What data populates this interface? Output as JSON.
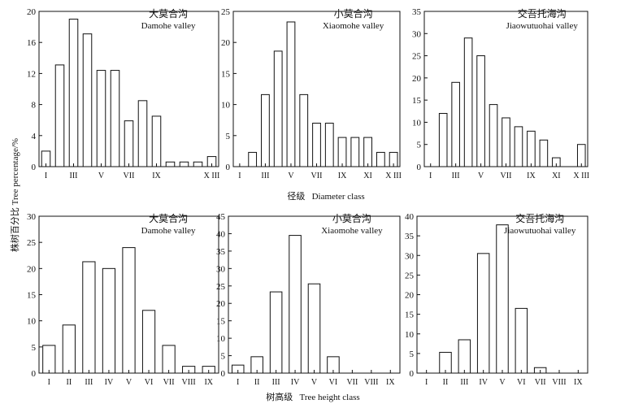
{
  "figure": {
    "y_axis_label": "株树百分比 Tree percentage/%",
    "top_x_label": "径级   Diameter class",
    "bottom_x_label": "树高级   Tree height class"
  },
  "chart_data": [
    {
      "type": "bar",
      "title_cn": "大莫合沟",
      "title_en": "Damohe valley",
      "xlabel": "Diameter class",
      "ylabel": "Tree percentage/%",
      "ylim": [
        0,
        20
      ],
      "yticks": [
        0,
        4,
        8,
        12,
        16,
        20
      ],
      "categories": [
        "I",
        "II",
        "III",
        "IV",
        "V",
        "VI",
        "VII",
        "VIII",
        "IX",
        "X",
        "XI",
        "XII",
        "XIII"
      ],
      "tick_labels": [
        "I",
        "III",
        "V",
        "VII",
        "IX",
        "X III"
      ],
      "tick_positions": [
        0,
        2,
        4,
        6,
        8,
        12
      ],
      "values": [
        2.0,
        13.1,
        19.0,
        17.1,
        12.4,
        12.4,
        5.9,
        8.5,
        6.5,
        0.6,
        0.6,
        0.6,
        1.3
      ]
    },
    {
      "type": "bar",
      "title_cn": "小莫合沟",
      "title_en": "Xiaomohe valley",
      "xlabel": "Diameter class",
      "ylabel": "Tree percentage/%",
      "ylim": [
        0,
        25
      ],
      "yticks": [
        0,
        5,
        10,
        15,
        20,
        25
      ],
      "categories": [
        "I",
        "II",
        "III",
        "IV",
        "V",
        "VI",
        "VII",
        "VIII",
        "IX",
        "X",
        "XI",
        "XII",
        "XIII"
      ],
      "tick_labels": [
        "I",
        "III",
        "V",
        "VII",
        "IX",
        "XI",
        "X III"
      ],
      "tick_positions": [
        0,
        2,
        4,
        6,
        8,
        10,
        12
      ],
      "values": [
        0,
        2.3,
        11.6,
        18.6,
        23.3,
        11.6,
        7.0,
        7.0,
        4.7,
        4.7,
        4.7,
        2.3,
        2.3
      ]
    },
    {
      "type": "bar",
      "title_cn": "交吾托海沟",
      "title_en": "Jiaowutuohai valley",
      "xlabel": "Diameter class",
      "ylabel": "Tree percentage/%",
      "ylim": [
        0,
        35
      ],
      "yticks": [
        0,
        5,
        10,
        15,
        20,
        25,
        30,
        35
      ],
      "categories": [
        "I",
        "II",
        "III",
        "IV",
        "V",
        "VI",
        "VII",
        "VIII",
        "IX",
        "X",
        "XI",
        "XII",
        "XIII"
      ],
      "tick_labels": [
        "I",
        "III",
        "V",
        "VII",
        "IX",
        "XI",
        "X III"
      ],
      "tick_positions": [
        0,
        2,
        4,
        6,
        8,
        10,
        12
      ],
      "values": [
        0,
        12.0,
        19.0,
        29.0,
        25.0,
        14.0,
        11.0,
        9.0,
        8.0,
        6.0,
        2.0,
        0,
        5.0
      ]
    },
    {
      "type": "bar",
      "title_cn": "大莫合沟",
      "title_en": "Damohe valley",
      "xlabel": "Tree height class",
      "ylabel": "Tree percentage/%",
      "ylim": [
        0,
        30
      ],
      "yticks": [
        0,
        5,
        10,
        15,
        20,
        25,
        30
      ],
      "categories": [
        "I",
        "II",
        "III",
        "IV",
        "V",
        "VI",
        "VII",
        "VIII",
        "IX"
      ],
      "tick_labels": [
        "I",
        "II",
        "III",
        "IV",
        "V",
        "VI",
        "VII",
        "VIII",
        "IX"
      ],
      "tick_positions": [
        0,
        1,
        2,
        3,
        4,
        5,
        6,
        7,
        8
      ],
      "values": [
        5.3,
        9.2,
        21.3,
        20.0,
        24.0,
        12.0,
        5.3,
        1.3,
        1.3
      ]
    },
    {
      "type": "bar",
      "title_cn": "小莫合沟",
      "title_en": "Xiaomohe valley",
      "xlabel": "Tree height class",
      "ylabel": "Tree percentage/%",
      "ylim": [
        0,
        45
      ],
      "yticks": [
        0,
        5,
        10,
        15,
        20,
        25,
        30,
        35,
        40,
        45
      ],
      "categories": [
        "I",
        "II",
        "III",
        "IV",
        "V",
        "VI",
        "VII",
        "VIII",
        "IX"
      ],
      "tick_labels": [
        "I",
        "II",
        "III",
        "IV",
        "V",
        "VI",
        "VII",
        "VIII",
        "IX"
      ],
      "tick_positions": [
        0,
        1,
        2,
        3,
        4,
        5,
        6,
        7,
        8
      ],
      "values": [
        2.3,
        4.7,
        23.3,
        39.5,
        25.6,
        4.7,
        0,
        0,
        0
      ]
    },
    {
      "type": "bar",
      "title_cn": "交吾托海沟",
      "title_en": "Jiaowutuohai valley",
      "xlabel": "Tree height class",
      "ylabel": "Tree percentage/%",
      "ylim": [
        0,
        40
      ],
      "yticks": [
        0,
        5,
        10,
        15,
        20,
        25,
        30,
        35,
        40
      ],
      "categories": [
        "I",
        "II",
        "III",
        "IV",
        "V",
        "VI",
        "VII",
        "VIII",
        "IX"
      ],
      "tick_labels": [
        "I",
        "II",
        "III",
        "IV",
        "V",
        "VI",
        "VII",
        "VIII",
        "IX"
      ],
      "tick_positions": [
        0,
        1,
        2,
        3,
        4,
        5,
        6,
        7,
        8
      ],
      "values": [
        0,
        5.3,
        8.5,
        30.5,
        37.8,
        16.5,
        1.4,
        0,
        0
      ]
    }
  ]
}
